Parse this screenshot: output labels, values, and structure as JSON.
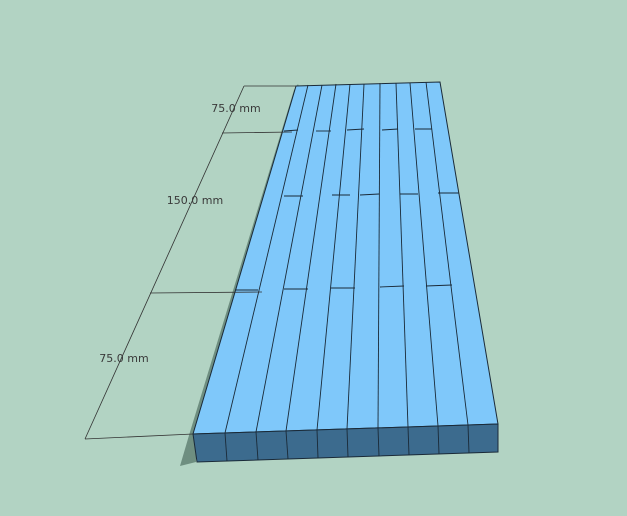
{
  "viewport": {
    "background_color": "#B2D3C3"
  },
  "model": {
    "top_face_color": "#7FC8FA",
    "front_face_color": "#3C6B8E",
    "side_face_color": "#2E5A7C",
    "edge_color": "#1A2A38",
    "shadow_color": "#6E8E80"
  },
  "dimensions": {
    "line_color": "#333333",
    "label_color": "#3A3A3A",
    "labels": [
      "75.0 mm",
      "150.0 mm",
      "75.0 mm"
    ]
  }
}
